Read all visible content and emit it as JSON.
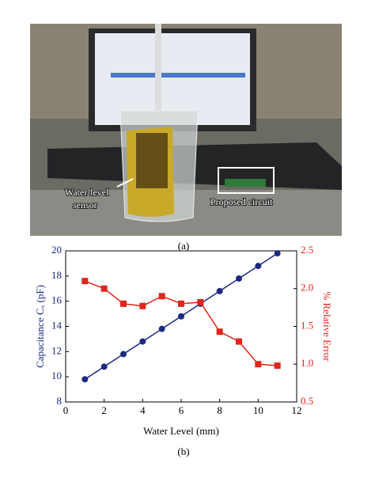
{
  "photo": {
    "sensor_label": [
      "Water-level",
      "sensor"
    ],
    "circuit_label": "Proposed circuit"
  },
  "captions": [
    "(a)",
    "(b)"
  ],
  "chart_data": {
    "type": "line",
    "x_label": "Water Level (mm)",
    "y_label": "Capacitance Cₓ (pF)",
    "y2_label": "% Relative Error",
    "x": [
      1,
      2,
      3,
      4,
      5,
      6,
      7,
      8,
      9,
      10,
      11
    ],
    "xlim": [
      0,
      12
    ],
    "xticks": [
      0,
      2,
      4,
      6,
      8,
      10,
      12
    ],
    "ylim": [
      8,
      20
    ],
    "yticks": [
      8,
      10,
      12,
      14,
      16,
      18,
      20
    ],
    "y2lim": [
      0.5,
      2.5
    ],
    "y2ticks": [
      0.5,
      {
        "value": 1,
        "label": "1.0"
      },
      1.5,
      {
        "value": 2,
        "label": "2.0"
      },
      2.5
    ],
    "series": [
      {
        "name": "Capacitance",
        "color": "#1c2a80",
        "marker": "circle",
        "values": [
          9.8,
          10.8,
          11.8,
          12.8,
          13.8,
          14.8,
          15.8,
          16.8,
          17.8,
          18.8,
          19.8
        ]
      },
      {
        "name": "% Relative Error",
        "color": "#e0251b",
        "marker": "square",
        "axis": "y2",
        "values": [
          2.1,
          2.0,
          1.8,
          1.77,
          1.9,
          1.8,
          1.82,
          1.43,
          1.3,
          1.0,
          0.98
        ]
      }
    ]
  }
}
